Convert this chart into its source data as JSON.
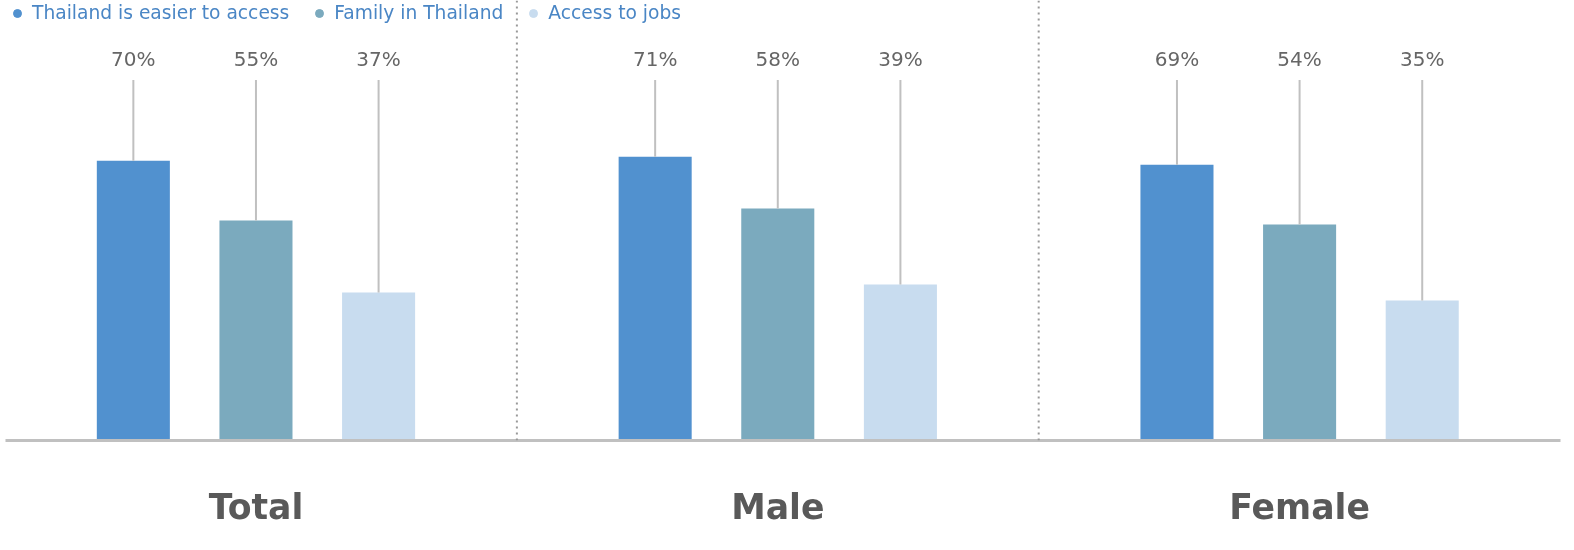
{
  "chart_data": {
    "type": "bar",
    "categories": [
      "Total",
      "Male",
      "Female"
    ],
    "series": [
      {
        "name": "Thailand is easier to access",
        "color": "#5191cf",
        "values": [
          70,
          71,
          69
        ],
        "value_labels": [
          "70%",
          "71%",
          "69%"
        ]
      },
      {
        "name": "Family in Thailand",
        "color": "#7baabe",
        "values": [
          55,
          58,
          54
        ],
        "value_labels": [
          "55%",
          "58%",
          "54%"
        ]
      },
      {
        "name": "Access to jobs",
        "color": "#c8dcef",
        "values": [
          37,
          39,
          35
        ],
        "value_labels": [
          "37%",
          "39%",
          "35%"
        ]
      }
    ],
    "legend": "top left"
  }
}
